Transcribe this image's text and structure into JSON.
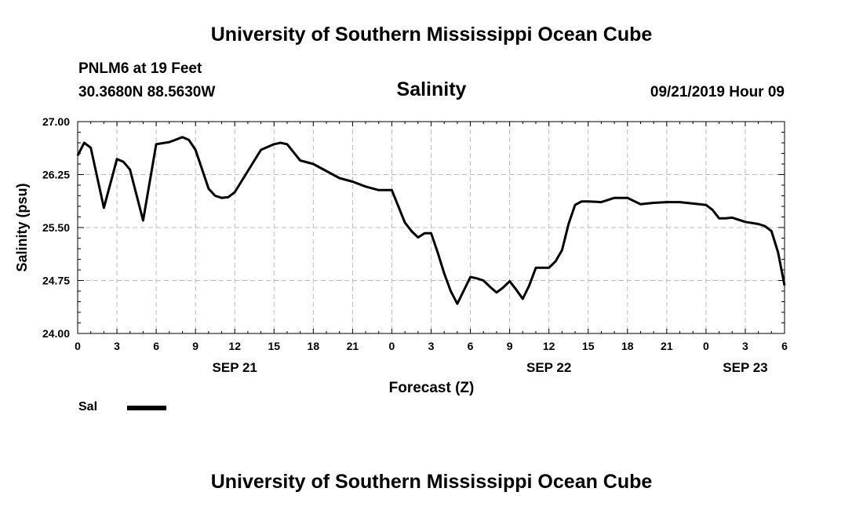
{
  "header": {
    "top_title": "University of Southern Mississippi Ocean Cube",
    "bottom_title": "University of Southern Mississippi Ocean Cube",
    "station": "PNLM6 at 19 Feet",
    "coordinates": "30.3680N 88.5630W",
    "datetime": "09/21/2019 Hour 09"
  },
  "colors": {
    "line": "#000000",
    "grid": "#bbbbbb",
    "background": "#ffffff"
  },
  "chart_data": {
    "type": "line",
    "title": "Salinity",
    "xlabel": "Forecast (Z)",
    "ylabel": "Salinity (psu)",
    "xlim": [
      0,
      54
    ],
    "ylim": [
      24.0,
      27.0
    ],
    "y_ticks": [
      "24.00",
      "24.75",
      "25.50",
      "26.25",
      "27.00"
    ],
    "x_tick_labels": [
      "0",
      "3",
      "6",
      "9",
      "12",
      "15",
      "18",
      "21",
      "0",
      "3",
      "6",
      "9",
      "12",
      "15",
      "18",
      "21",
      "0",
      "3",
      "6"
    ],
    "date_labels": [
      {
        "hour": 12,
        "label": "SEP 21"
      },
      {
        "hour": 36,
        "label": "SEP 22"
      },
      {
        "hour": 51,
        "label": "SEP 23"
      }
    ],
    "grid": true,
    "legend": {
      "position": "bottom-left",
      "entries": [
        {
          "name": "Sal"
        }
      ]
    },
    "series": [
      {
        "name": "Sal",
        "x": [
          0,
          0.5,
          1,
          2,
          3,
          3.5,
          4,
          5,
          6,
          7,
          8,
          8.5,
          9,
          10,
          10.5,
          11,
          11.5,
          12,
          13,
          14,
          15,
          15.5,
          16,
          17,
          18,
          19,
          20,
          21,
          22,
          23,
          24,
          25,
          25.5,
          26,
          26.5,
          27,
          27.5,
          28,
          28.5,
          29,
          30,
          30.5,
          31,
          31.5,
          32,
          32.5,
          33,
          33.5,
          34,
          34.5,
          35,
          36,
          36.5,
          37,
          37.5,
          38,
          38.5,
          39,
          40,
          41,
          42,
          43,
          44,
          45,
          46,
          47,
          48,
          48.5,
          49,
          49.5,
          50,
          51,
          52,
          52.5,
          53,
          53.5,
          54
        ],
        "y": [
          26.52,
          26.7,
          26.63,
          25.78,
          26.47,
          26.43,
          26.32,
          25.6,
          26.68,
          26.71,
          26.78,
          26.74,
          26.6,
          26.05,
          25.95,
          25.92,
          25.93,
          26.0,
          26.3,
          26.6,
          26.68,
          26.7,
          26.68,
          26.45,
          26.4,
          26.3,
          26.2,
          26.15,
          26.08,
          26.03,
          26.03,
          25.57,
          25.45,
          25.36,
          25.42,
          25.42,
          25.15,
          24.85,
          24.6,
          24.42,
          24.8,
          24.78,
          24.75,
          24.66,
          24.58,
          24.65,
          24.74,
          24.62,
          24.49,
          24.68,
          24.93,
          24.93,
          25.02,
          25.18,
          25.55,
          25.82,
          25.87,
          25.87,
          25.86,
          25.92,
          25.92,
          25.83,
          25.85,
          25.86,
          25.86,
          25.84,
          25.82,
          25.75,
          25.63,
          25.63,
          25.64,
          25.58,
          25.55,
          25.52,
          25.45,
          25.15,
          24.68
        ]
      }
    ]
  }
}
